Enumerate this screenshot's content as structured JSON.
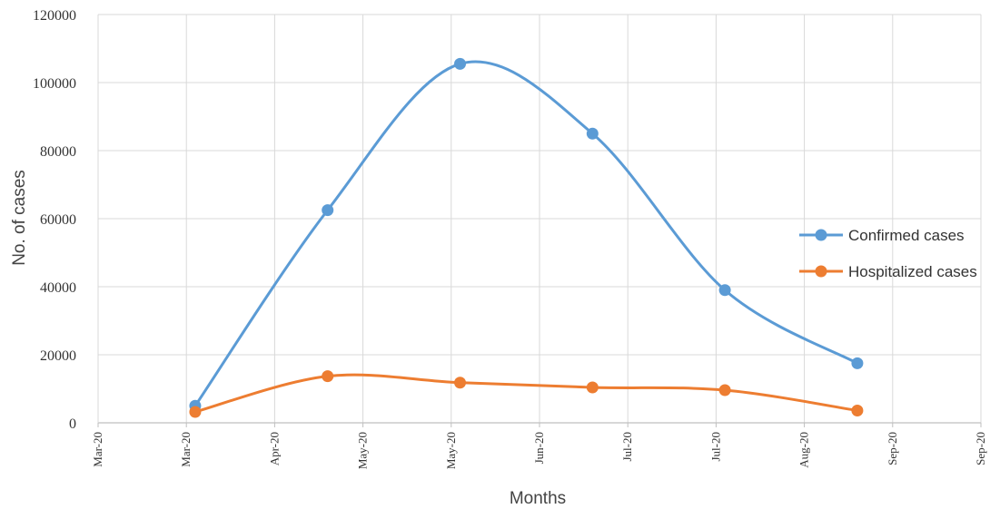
{
  "chart_data": {
    "type": "line",
    "title": "",
    "xlabel": "Months",
    "ylabel": "No. of cases",
    "ylim": [
      0,
      120000
    ],
    "yticks": [
      "0",
      "20000",
      "40000",
      "60000",
      "80000",
      "100000",
      "120000"
    ],
    "xticks": [
      "Mar-20",
      "Mar-20",
      "Apr-20",
      "May-20",
      "May-20",
      "Jun-20",
      "Jul-20",
      "Jul-20",
      "Aug-20",
      "Sep-20",
      "Sep-20"
    ],
    "grid": true,
    "smooth": true,
    "legend": "right",
    "x_positions": [
      1.1,
      2.6,
      4.1,
      5.6,
      7.1,
      8.6
    ],
    "series": [
      {
        "name": "Confirmed cases",
        "color": "#5b9bd5",
        "values": [
          5000,
          62500,
          105500,
          85000,
          39000,
          17500
        ]
      },
      {
        "name": "Hospitalized cases",
        "color": "#ed7d31",
        "values": [
          3200,
          13700,
          11800,
          10400,
          9600,
          3600
        ]
      }
    ]
  }
}
